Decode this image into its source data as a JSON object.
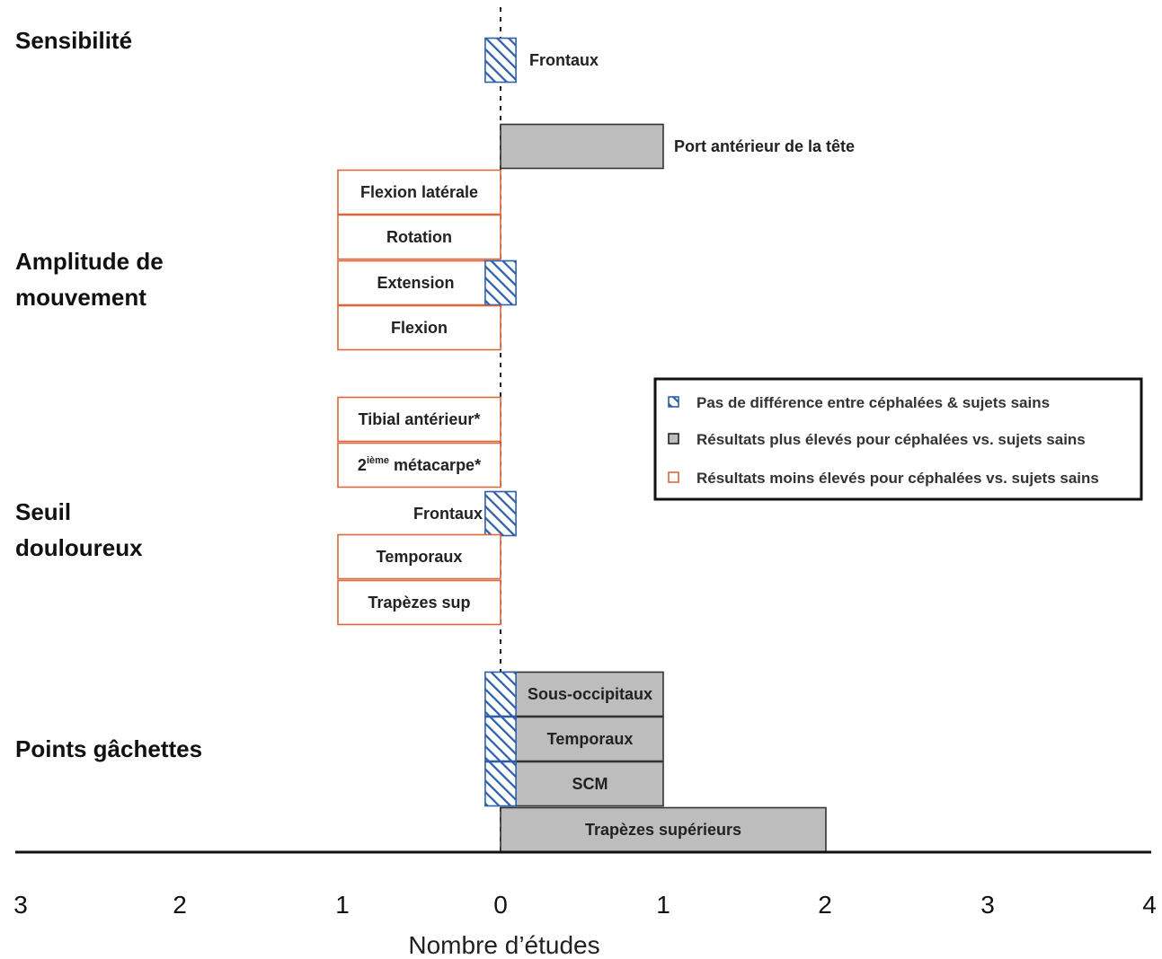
{
  "chart_data": {
    "type": "bar",
    "orientation": "horizontal",
    "xlabel": "Nombre d’études",
    "tick_labels": [
      "3",
      "2",
      "1",
      "0",
      "1",
      "2",
      "3",
      "4"
    ],
    "xlim": [
      -3,
      4
    ],
    "groups": [
      {
        "name": "Sensibilité",
        "lines": [
          "Sensibilité"
        ]
      },
      {
        "name": "Amplitude de mouvement",
        "lines": [
          "Amplitude de",
          "mouvement"
        ]
      },
      {
        "name": "Seuil douloureux",
        "lines": [
          "Seuil",
          "douloureux"
        ]
      },
      {
        "name": "Points gâchettes",
        "lines": [
          "Points gâchettes"
        ]
      }
    ],
    "rows": [
      {
        "group": "Sensibilité",
        "label": "Frontaux",
        "higher": 0,
        "lower": 0,
        "no_difference": 0.2
      },
      {
        "group": "Sensibilité",
        "label": "Port antérieur de la tête",
        "higher": 1,
        "lower": 0,
        "no_difference": 0
      },
      {
        "group": "Amplitude de mouvement",
        "label": "Flexion latérale",
        "higher": 0,
        "lower": 1,
        "no_difference": 0
      },
      {
        "group": "Amplitude de mouvement",
        "label": "Rotation",
        "higher": 0,
        "lower": 1,
        "no_difference": 0
      },
      {
        "group": "Amplitude de mouvement",
        "label": "Extension",
        "higher": 0,
        "lower": 1,
        "no_difference": 0.2
      },
      {
        "group": "Amplitude de mouvement",
        "label": "Flexion",
        "higher": 0,
        "lower": 1,
        "no_difference": 0
      },
      {
        "group": "Seuil douloureux",
        "label": "Tibial antérieur*",
        "higher": 0,
        "lower": 1,
        "no_difference": 0
      },
      {
        "group": "Seuil douloureux",
        "label": "2ième métacarpe*",
        "higher": 0,
        "lower": 1,
        "no_difference": 0
      },
      {
        "group": "Seuil douloureux",
        "label": "Frontaux",
        "higher": 0,
        "lower": 0,
        "no_difference": 0.2
      },
      {
        "group": "Seuil douloureux",
        "label": "Temporaux",
        "higher": 0,
        "lower": 1,
        "no_difference": 0
      },
      {
        "group": "Seuil douloureux",
        "label": "Trapèzes sup",
        "higher": 0,
        "lower": 1,
        "no_difference": 0
      },
      {
        "group": "Points gâchettes",
        "label": "Sous-occipitaux",
        "higher": 1,
        "lower": 0,
        "no_difference": 0.2
      },
      {
        "group": "Points gâchettes",
        "label": "Temporaux",
        "higher": 1,
        "lower": 0,
        "no_difference": 0.2
      },
      {
        "group": "Points gâchettes",
        "label": "SCM",
        "higher": 1,
        "lower": 0,
        "no_difference": 0.2
      },
      {
        "group": "Points gâchettes",
        "label": "Trapèzes supérieurs",
        "higher": 2,
        "lower": 0,
        "no_difference": 0
      }
    ],
    "legend": [
      {
        "key": "no_difference",
        "label": "Pas de différence entre céphalées & sujets sains",
        "color": "#2f5fa8",
        "pattern": "hatched"
      },
      {
        "key": "higher",
        "label": "Résultats plus élevés pour céphalées vs. sujets sains",
        "color": "#bdbdbd"
      },
      {
        "key": "lower",
        "label": "Résultats moins élevés pour céphalées vs. sujets sains",
        "color": "#d9683f"
      }
    ],
    "legend_placement": "right"
  }
}
